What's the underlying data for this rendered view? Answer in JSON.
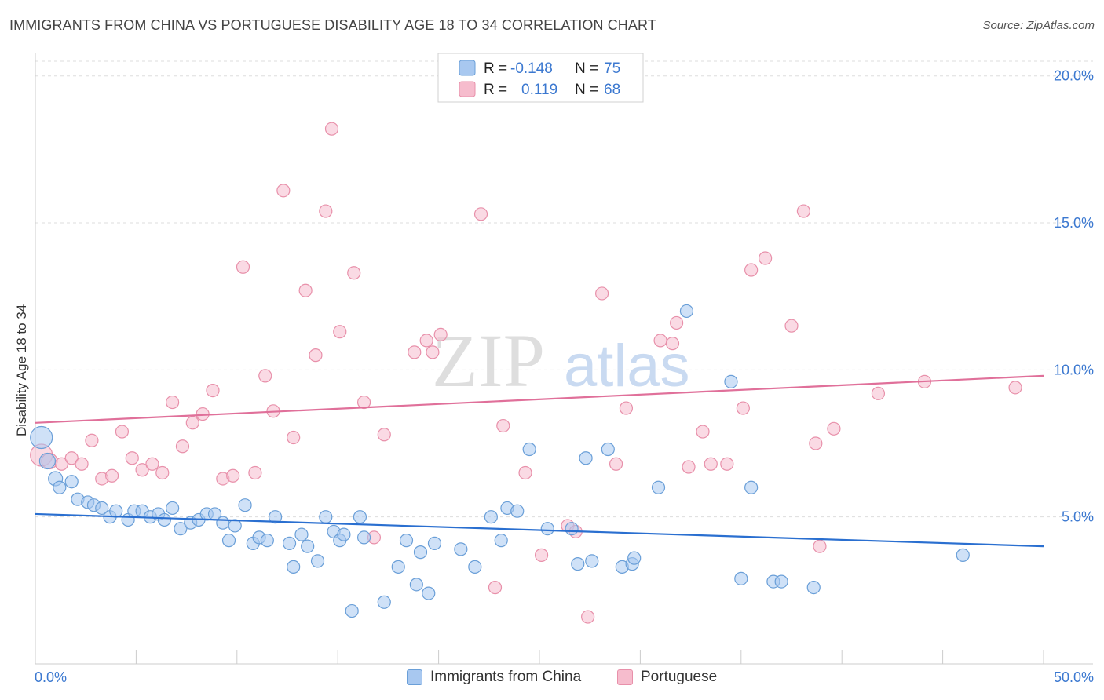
{
  "title": "IMMIGRANTS FROM CHINA VS PORTUGUESE DISABILITY AGE 18 TO 34 CORRELATION CHART",
  "source": "Source: ZipAtlas.com",
  "watermark": {
    "zip": "ZIP",
    "atlas": "atlas"
  },
  "legend": {
    "china": {
      "r_label": "R =",
      "r_value": "-0.148",
      "n_label": "N =",
      "n_value": "75"
    },
    "portuguese": {
      "r_label": "R =",
      "r_value": "0.119",
      "n_label": "N =",
      "n_value": "68"
    }
  },
  "bottom_legend": {
    "china": "Immigrants from China",
    "portuguese": "Portuguese"
  },
  "colors": {
    "china_fill": "#a8c8f0",
    "china_stroke": "#6a9fd8",
    "china_line": "#2a6fd0",
    "portuguese_fill": "#f6bccd",
    "portuguese_stroke": "#e890aa",
    "portuguese_line": "#e0709a",
    "axis_text": "#3b78d0"
  },
  "chart_data": {
    "type": "scatter",
    "title": "IMMIGRANTS FROM CHINA VS PORTUGUESE DISABILITY AGE 18 TO 34 CORRELATION CHART",
    "xlabel": "",
    "ylabel": "Disability Age 18 to 34",
    "xlim": [
      0,
      50
    ],
    "ylim": [
      0,
      20.5
    ],
    "x_tick_labels": [
      "0.0%",
      "50.0%"
    ],
    "y_ticks": [
      5,
      10,
      15,
      20
    ],
    "y_tick_labels": [
      "5.0%",
      "10.0%",
      "15.0%",
      "20.0%"
    ],
    "grid": "horizontal dashed",
    "series": [
      {
        "name": "Immigrants from China",
        "trend": {
          "x": [
            0,
            50
          ],
          "y": [
            5.1,
            4.0
          ]
        },
        "points": [
          [
            0.3,
            7.7,
            14
          ],
          [
            0.6,
            6.9,
            10
          ],
          [
            1.0,
            6.3,
            9
          ],
          [
            1.2,
            6.0,
            8
          ],
          [
            1.8,
            6.2,
            8
          ],
          [
            2.1,
            5.6,
            8
          ],
          [
            2.6,
            5.5,
            8
          ],
          [
            2.9,
            5.4,
            8
          ],
          [
            3.3,
            5.3,
            8
          ],
          [
            3.7,
            5.0,
            8
          ],
          [
            4.0,
            5.2,
            8
          ],
          [
            4.6,
            4.9,
            8
          ],
          [
            4.9,
            5.2,
            8
          ],
          [
            5.3,
            5.2,
            8
          ],
          [
            5.7,
            5.0,
            8
          ],
          [
            6.1,
            5.1,
            8
          ],
          [
            6.4,
            4.9,
            8
          ],
          [
            6.8,
            5.3,
            8
          ],
          [
            7.2,
            4.6,
            8
          ],
          [
            7.7,
            4.8,
            8
          ],
          [
            8.1,
            4.9,
            8
          ],
          [
            8.5,
            5.1,
            8
          ],
          [
            8.9,
            5.1,
            8
          ],
          [
            9.3,
            4.8,
            8
          ],
          [
            9.6,
            4.2,
            8
          ],
          [
            9.9,
            4.7,
            8
          ],
          [
            10.4,
            5.4,
            8
          ],
          [
            10.8,
            4.1,
            8
          ],
          [
            11.1,
            4.3,
            8
          ],
          [
            11.5,
            4.2,
            8
          ],
          [
            11.9,
            5.0,
            8
          ],
          [
            12.6,
            4.1,
            8
          ],
          [
            12.8,
            3.3,
            8
          ],
          [
            13.2,
            4.4,
            8
          ],
          [
            13.5,
            4.0,
            8
          ],
          [
            14.0,
            3.5,
            8
          ],
          [
            14.4,
            5.0,
            8
          ],
          [
            14.8,
            4.5,
            8
          ],
          [
            15.1,
            4.2,
            8
          ],
          [
            15.3,
            4.4,
            8
          ],
          [
            15.7,
            1.8,
            8
          ],
          [
            16.1,
            5.0,
            8
          ],
          [
            16.3,
            4.3,
            8
          ],
          [
            17.3,
            2.1,
            8
          ],
          [
            18.0,
            3.3,
            8
          ],
          [
            18.4,
            4.2,
            8
          ],
          [
            18.9,
            2.7,
            8
          ],
          [
            19.1,
            3.8,
            8
          ],
          [
            19.5,
            2.4,
            8
          ],
          [
            19.8,
            4.1,
            8
          ],
          [
            21.1,
            3.9,
            8
          ],
          [
            21.8,
            3.3,
            8
          ],
          [
            22.6,
            5.0,
            8
          ],
          [
            23.1,
            4.2,
            8
          ],
          [
            23.4,
            5.3,
            8
          ],
          [
            23.9,
            5.2,
            8
          ],
          [
            24.5,
            7.3,
            8
          ],
          [
            25.4,
            4.6,
            8
          ],
          [
            26.6,
            4.6,
            8
          ],
          [
            26.9,
            3.4,
            8
          ],
          [
            27.3,
            7.0,
            8
          ],
          [
            27.6,
            3.5,
            8
          ],
          [
            28.4,
            7.3,
            8
          ],
          [
            29.1,
            3.3,
            8
          ],
          [
            29.6,
            3.4,
            8
          ],
          [
            29.7,
            3.6,
            8
          ],
          [
            30.9,
            6.0,
            8
          ],
          [
            32.3,
            12.0,
            8
          ],
          [
            34.5,
            9.6,
            8
          ],
          [
            35.0,
            2.9,
            8
          ],
          [
            35.5,
            6.0,
            8
          ],
          [
            36.6,
            2.8,
            8
          ],
          [
            37.0,
            2.8,
            8
          ],
          [
            38.6,
            2.6,
            8
          ],
          [
            46.0,
            3.7,
            8
          ]
        ]
      },
      {
        "name": "Portuguese",
        "trend": {
          "x": [
            0,
            50
          ],
          "y": [
            8.2,
            9.8
          ]
        },
        "points": [
          [
            0.3,
            7.1,
            14
          ],
          [
            0.7,
            6.9,
            10
          ],
          [
            1.3,
            6.8,
            8
          ],
          [
            1.8,
            7.0,
            8
          ],
          [
            2.3,
            6.8,
            8
          ],
          [
            2.8,
            7.6,
            8
          ],
          [
            3.3,
            6.3,
            8
          ],
          [
            3.8,
            6.4,
            8
          ],
          [
            4.3,
            7.9,
            8
          ],
          [
            4.8,
            7.0,
            8
          ],
          [
            5.3,
            6.6,
            8
          ],
          [
            5.8,
            6.8,
            8
          ],
          [
            6.3,
            6.5,
            8
          ],
          [
            6.8,
            8.9,
            8
          ],
          [
            7.3,
            7.4,
            8
          ],
          [
            7.8,
            8.2,
            8
          ],
          [
            8.3,
            8.5,
            8
          ],
          [
            8.8,
            9.3,
            8
          ],
          [
            9.3,
            6.3,
            8
          ],
          [
            9.8,
            6.4,
            8
          ],
          [
            10.3,
            13.5,
            8
          ],
          [
            10.9,
            6.5,
            8
          ],
          [
            11.4,
            9.8,
            8
          ],
          [
            11.8,
            8.6,
            8
          ],
          [
            12.3,
            16.1,
            8
          ],
          [
            12.8,
            7.7,
            8
          ],
          [
            13.4,
            12.7,
            8
          ],
          [
            13.9,
            10.5,
            8
          ],
          [
            14.4,
            15.4,
            8
          ],
          [
            14.7,
            18.2,
            8
          ],
          [
            15.1,
            11.3,
            8
          ],
          [
            15.8,
            13.3,
            8
          ],
          [
            16.3,
            8.9,
            8
          ],
          [
            16.8,
            4.3,
            8
          ],
          [
            17.3,
            7.8,
            8
          ],
          [
            18.8,
            10.6,
            8
          ],
          [
            19.4,
            11.0,
            8
          ],
          [
            19.7,
            10.6,
            8
          ],
          [
            20.1,
            11.2,
            8
          ],
          [
            22.1,
            15.3,
            8
          ],
          [
            22.8,
            2.6,
            8
          ],
          [
            23.2,
            8.1,
            8
          ],
          [
            24.3,
            6.5,
            8
          ],
          [
            25.1,
            3.7,
            8
          ],
          [
            26.4,
            4.7,
            8
          ],
          [
            26.8,
            4.5,
            8
          ],
          [
            27.4,
            1.6,
            8
          ],
          [
            28.1,
            12.6,
            8
          ],
          [
            28.8,
            6.8,
            8
          ],
          [
            29.3,
            8.7,
            8
          ],
          [
            31.0,
            11.0,
            8
          ],
          [
            31.6,
            10.9,
            8
          ],
          [
            31.8,
            11.6,
            8
          ],
          [
            32.4,
            6.7,
            8
          ],
          [
            33.1,
            7.9,
            8
          ],
          [
            33.5,
            6.8,
            8
          ],
          [
            34.3,
            6.8,
            8
          ],
          [
            35.1,
            8.7,
            8
          ],
          [
            35.5,
            13.4,
            8
          ],
          [
            36.2,
            13.8,
            8
          ],
          [
            37.5,
            11.5,
            8
          ],
          [
            38.1,
            15.4,
            8
          ],
          [
            38.7,
            7.5,
            8
          ],
          [
            38.9,
            4.0,
            8
          ],
          [
            39.6,
            8.0,
            8
          ],
          [
            41.8,
            9.2,
            8
          ],
          [
            44.1,
            9.6,
            8
          ],
          [
            48.6,
            9.4,
            8
          ]
        ]
      }
    ]
  }
}
